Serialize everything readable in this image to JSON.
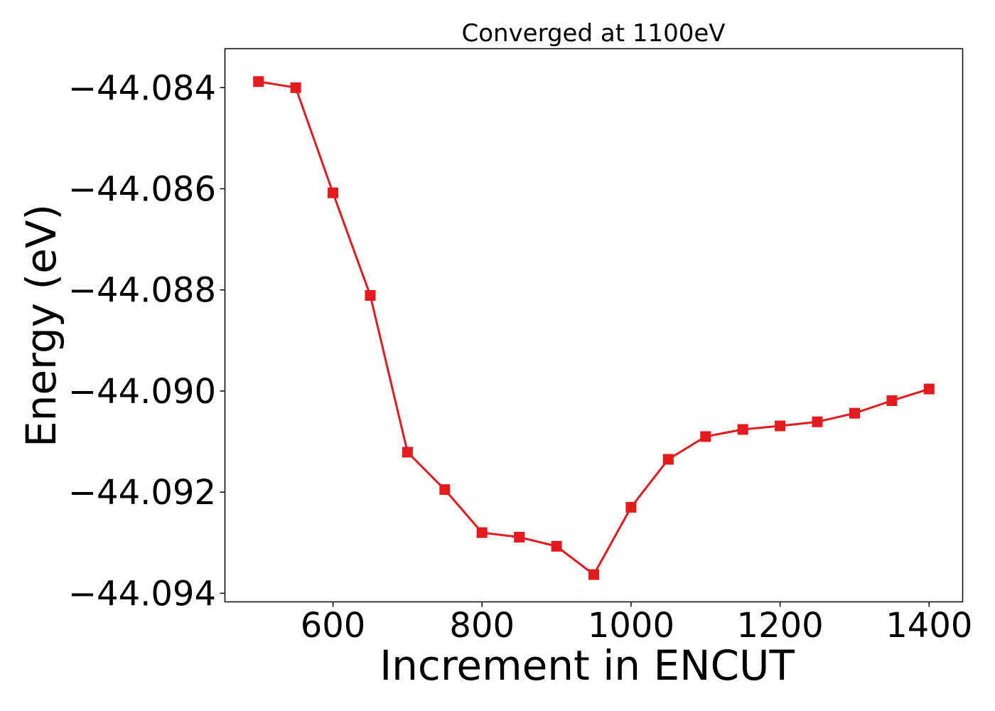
{
  "chart_data": {
    "type": "line",
    "title": "Converged at 1100eV",
    "xlabel": "Increment in ENCUT",
    "ylabel": "Energy (eV)",
    "xlim": [
      455,
      1445
    ],
    "ylim": [
      -44.09417,
      -44.08323
    ],
    "grid": false,
    "marker": "square",
    "color": "#e41a1c",
    "x_ticks": [
      600,
      800,
      1000,
      1200,
      1400
    ],
    "x_tick_labels": [
      "600",
      "800",
      "1000",
      "1200",
      "1400"
    ],
    "y_ticks": [
      -44.084,
      -44.086,
      -44.088,
      -44.09,
      -44.092,
      -44.094
    ],
    "y_tick_labels": [
      "−44.084",
      "−44.086",
      "−44.088",
      "−44.090",
      "−44.092",
      "−44.094"
    ],
    "series": [
      {
        "x": [
          500,
          550,
          600,
          650,
          700,
          750,
          800,
          850,
          900,
          950,
          1000,
          1050,
          1100,
          1150,
          1200,
          1250,
          1300,
          1350,
          1400
        ],
        "y": [
          -44.08388,
          -44.084,
          -44.08608,
          -44.08811,
          -44.09121,
          -44.09195,
          -44.0928,
          -44.09289,
          -44.09307,
          -44.09363,
          -44.0923,
          -44.09135,
          -44.0909,
          -44.09076,
          -44.09069,
          -44.09061,
          -44.09044,
          -44.09019,
          -44.08996
        ]
      }
    ]
  }
}
